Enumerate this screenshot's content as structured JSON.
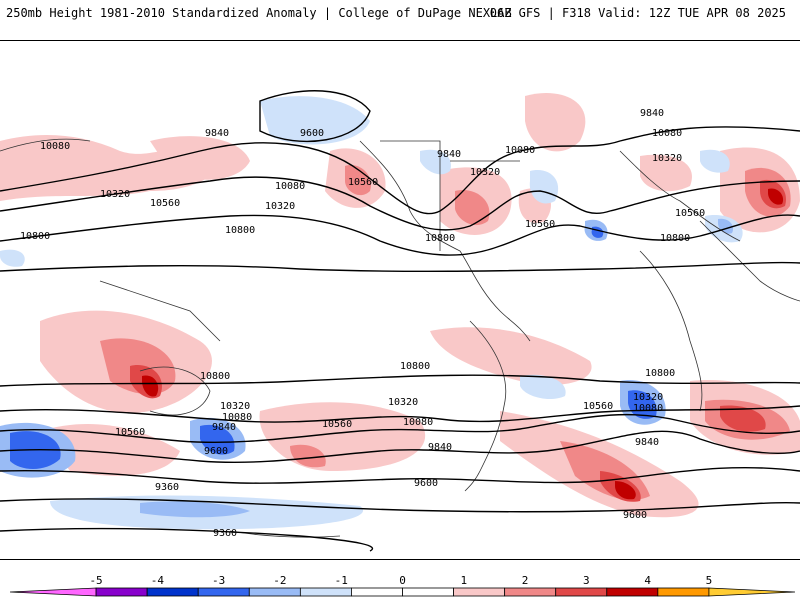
{
  "header": {
    "left_title": "250mb Height 1981-2010 Standardized Anomaly | College of DuPage NEXLAB",
    "right_title": "06Z GFS | F318 Valid: 12Z TUE APR 08 2025"
  },
  "map": {
    "contour_labels": {
      "h9840_nw": "9840",
      "h9600_n": "9600",
      "h10080_w": "10080",
      "h10320_w": "10320",
      "h10560_w": "10560",
      "h10800_w": "10800",
      "h10080_c": "10080",
      "h10320_c": "10320",
      "h10800_c": "10800",
      "h10560_c": "10560",
      "h9840_na": "9840",
      "h10080_na": "10080",
      "h10320_na": "10320",
      "h10560_atl": "10560",
      "h10800_na": "10800",
      "h9840_ne": "9840",
      "h10080_ne": "10080",
      "h10320_ne": "10320",
      "h10560_eu": "10560",
      "h10800_eu": "10800",
      "h10800_sw": "10800",
      "h10800_sc": "10800",
      "h10800_se": "10800",
      "h10320_sw": "10320",
      "h10080_sw": "10080",
      "h9840_sw": "9840",
      "h9600_sw": "9600",
      "h10560_sw": "10560",
      "h10560_sc": "10560",
      "h10320_sc": "10320",
      "h10080_sc": "10080",
      "h9840_sc": "9840",
      "h9600_sc": "9600",
      "h10560_se": "10560",
      "h10320_se": "10320",
      "h10080_se": "10080",
      "h9840_se": "9840",
      "h9600_se": "9600",
      "h9360_s": "9360",
      "h9360_s2": "9360"
    }
  },
  "colorbar": {
    "ticks": [
      "-5",
      "-4",
      "-3",
      "-2",
      "-1",
      "0",
      "1",
      "2",
      "3",
      "4",
      "5"
    ],
    "colors": [
      "#ff66ff",
      "#8800cc",
      "#0033cc",
      "#3366ee",
      "#99bbf5",
      "#cfe2fa",
      "#ffffff",
      "#ffffff",
      "#f9c8c8",
      "#f08888",
      "#e04848",
      "#c00000",
      "#ff9900",
      "#ffcc33"
    ]
  }
}
